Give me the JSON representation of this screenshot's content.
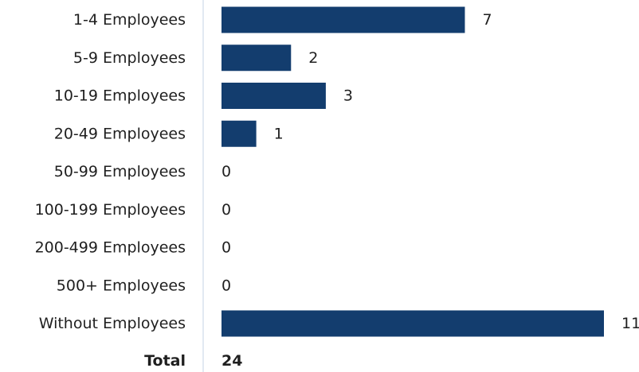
{
  "chart_data": {
    "type": "bar",
    "orientation": "horizontal",
    "categories": [
      "1-4 Employees",
      "5-9 Employees",
      "10-19 Employees",
      "20-49 Employees",
      "50-99 Employees",
      "100-199 Employees",
      "200-499 Employees",
      "500+ Employees",
      "Without Employees"
    ],
    "values": [
      7,
      2,
      3,
      1,
      0,
      0,
      0,
      0,
      11
    ],
    "total_label": "Total",
    "total_value": "24",
    "bar_color": "#133d6e",
    "axis_color": "#d9e2ee",
    "xlim": [
      0,
      11
    ],
    "grid": false,
    "legend": "none"
  }
}
